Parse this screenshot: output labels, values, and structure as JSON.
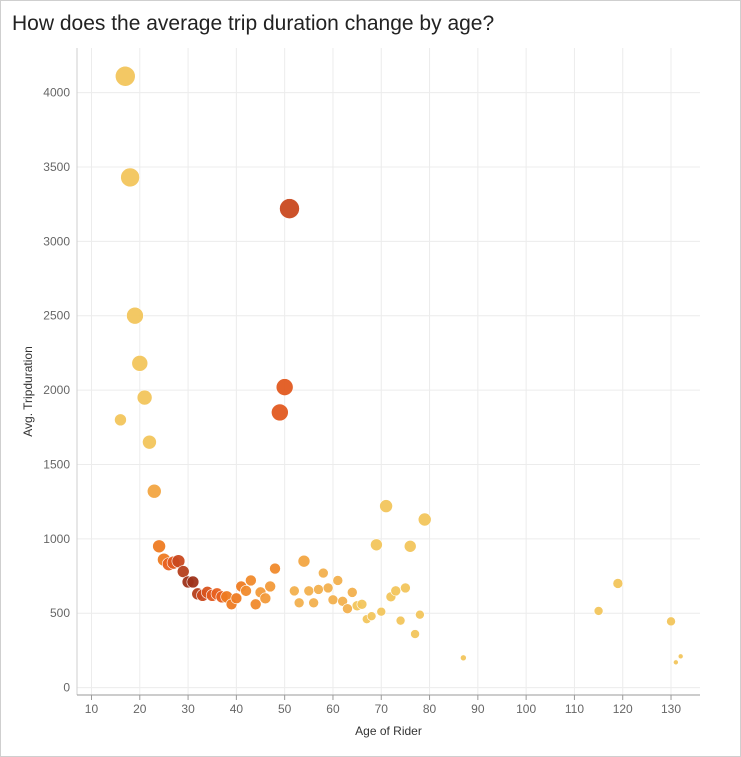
{
  "title": "How does the average trip duration change by age?",
  "chart_data": {
    "type": "scatter",
    "title": "How does the average trip duration change by age?",
    "xlabel": "Age of Rider",
    "ylabel": "Avg. Tripduration",
    "xlim": [
      7,
      136
    ],
    "ylim": [
      -50,
      4300
    ],
    "xticks": [
      10,
      20,
      30,
      40,
      50,
      60,
      70,
      80,
      90,
      100,
      110,
      120,
      130
    ],
    "yticks": [
      0,
      500,
      1000,
      1500,
      2000,
      2500,
      3000,
      3500,
      4000
    ],
    "grid": true,
    "encoding": "circle size and color vary per point (yellow = low, dark red = high)",
    "points": [
      {
        "x": 16,
        "y": 1800,
        "size": 6,
        "color": "#f2c55c"
      },
      {
        "x": 17,
        "y": 4110,
        "size": 10,
        "color": "#f2c55c"
      },
      {
        "x": 18,
        "y": 3430,
        "size": 9.5,
        "color": "#f2c55c"
      },
      {
        "x": 19,
        "y": 2500,
        "size": 8.5,
        "color": "#f2c55c"
      },
      {
        "x": 20,
        "y": 2180,
        "size": 8,
        "color": "#f2c55c"
      },
      {
        "x": 21,
        "y": 1950,
        "size": 7.5,
        "color": "#f2c55c"
      },
      {
        "x": 22,
        "y": 1650,
        "size": 7,
        "color": "#f2c55c"
      },
      {
        "x": 23,
        "y": 1320,
        "size": 7,
        "color": "#f2a542"
      },
      {
        "x": 24,
        "y": 950,
        "size": 6.5,
        "color": "#ee7b22"
      },
      {
        "x": 25,
        "y": 860,
        "size": 6.5,
        "color": "#ee7b22"
      },
      {
        "x": 26,
        "y": 830,
        "size": 6.5,
        "color": "#e86120"
      },
      {
        "x": 27,
        "y": 840,
        "size": 6.5,
        "color": "#e25a20"
      },
      {
        "x": 28,
        "y": 850,
        "size": 6.5,
        "color": "#c9491f"
      },
      {
        "x": 29,
        "y": 780,
        "size": 6,
        "color": "#b5401d"
      },
      {
        "x": 30,
        "y": 710,
        "size": 6,
        "color": "#9e331a"
      },
      {
        "x": 31,
        "y": 710,
        "size": 6,
        "color": "#9e331a"
      },
      {
        "x": 32,
        "y": 630,
        "size": 6,
        "color": "#b5401d"
      },
      {
        "x": 33,
        "y": 620,
        "size": 6,
        "color": "#c9491f"
      },
      {
        "x": 34,
        "y": 640,
        "size": 6,
        "color": "#d8541f"
      },
      {
        "x": 35,
        "y": 620,
        "size": 6,
        "color": "#e25a20"
      },
      {
        "x": 36,
        "y": 630,
        "size": 6,
        "color": "#e86120"
      },
      {
        "x": 37,
        "y": 610,
        "size": 6,
        "color": "#e86120"
      },
      {
        "x": 38,
        "y": 610,
        "size": 6,
        "color": "#ee7b22"
      },
      {
        "x": 39,
        "y": 560,
        "size": 5.5,
        "color": "#ee7b22"
      },
      {
        "x": 40,
        "y": 600,
        "size": 5.5,
        "color": "#ee7b22"
      },
      {
        "x": 41,
        "y": 680,
        "size": 5.5,
        "color": "#ee7b22"
      },
      {
        "x": 42,
        "y": 650,
        "size": 5.5,
        "color": "#f08a2c"
      },
      {
        "x": 43,
        "y": 720,
        "size": 5.5,
        "color": "#f08a2c"
      },
      {
        "x": 44,
        "y": 560,
        "size": 5.5,
        "color": "#f08a2c"
      },
      {
        "x": 45,
        "y": 640,
        "size": 5.5,
        "color": "#f29a3a"
      },
      {
        "x": 46,
        "y": 600,
        "size": 5.5,
        "color": "#f29a3a"
      },
      {
        "x": 47,
        "y": 680,
        "size": 5.5,
        "color": "#f29a3a"
      },
      {
        "x": 48,
        "y": 800,
        "size": 5.5,
        "color": "#f08a2c"
      },
      {
        "x": 49,
        "y": 1850,
        "size": 8.5,
        "color": "#e25a20"
      },
      {
        "x": 50,
        "y": 2020,
        "size": 8.5,
        "color": "#e25a20"
      },
      {
        "x": 51,
        "y": 3220,
        "size": 10,
        "color": "#c9491f"
      },
      {
        "x": 52,
        "y": 650,
        "size": 5,
        "color": "#f2b04e"
      },
      {
        "x": 53,
        "y": 570,
        "size": 5,
        "color": "#f2b04e"
      },
      {
        "x": 54,
        "y": 850,
        "size": 6,
        "color": "#f2a542"
      },
      {
        "x": 55,
        "y": 650,
        "size": 5,
        "color": "#f2b04e"
      },
      {
        "x": 56,
        "y": 570,
        "size": 5,
        "color": "#f2b04e"
      },
      {
        "x": 57,
        "y": 660,
        "size": 5,
        "color": "#f2b04e"
      },
      {
        "x": 58,
        "y": 770,
        "size": 5,
        "color": "#f2b04e"
      },
      {
        "x": 59,
        "y": 670,
        "size": 5,
        "color": "#f2b04e"
      },
      {
        "x": 60,
        "y": 590,
        "size": 5,
        "color": "#f2b04e"
      },
      {
        "x": 61,
        "y": 720,
        "size": 5,
        "color": "#f2b04e"
      },
      {
        "x": 62,
        "y": 580,
        "size": 5,
        "color": "#f2b04e"
      },
      {
        "x": 63,
        "y": 530,
        "size": 5,
        "color": "#f2b04e"
      },
      {
        "x": 64,
        "y": 640,
        "size": 5,
        "color": "#f2b04e"
      },
      {
        "x": 65,
        "y": 550,
        "size": 5,
        "color": "#f2c55c"
      },
      {
        "x": 66,
        "y": 560,
        "size": 5,
        "color": "#f2c55c"
      },
      {
        "x": 67,
        "y": 460,
        "size": 4.5,
        "color": "#f2c55c"
      },
      {
        "x": 68,
        "y": 480,
        "size": 4.5,
        "color": "#f2c55c"
      },
      {
        "x": 69,
        "y": 960,
        "size": 6,
        "color": "#f2c55c"
      },
      {
        "x": 70,
        "y": 510,
        "size": 4.5,
        "color": "#f2c55c"
      },
      {
        "x": 71,
        "y": 1220,
        "size": 6.5,
        "color": "#f2c55c"
      },
      {
        "x": 72,
        "y": 610,
        "size": 5,
        "color": "#f2c55c"
      },
      {
        "x": 73,
        "y": 650,
        "size": 5,
        "color": "#f2c55c"
      },
      {
        "x": 74,
        "y": 450,
        "size": 4.5,
        "color": "#f2c55c"
      },
      {
        "x": 75,
        "y": 670,
        "size": 5,
        "color": "#f2c55c"
      },
      {
        "x": 76,
        "y": 950,
        "size": 6,
        "color": "#f2c55c"
      },
      {
        "x": 77,
        "y": 360,
        "size": 4.5,
        "color": "#f2c55c"
      },
      {
        "x": 78,
        "y": 490,
        "size": 4.5,
        "color": "#f2c55c"
      },
      {
        "x": 79,
        "y": 1130,
        "size": 6.5,
        "color": "#f2c55c"
      },
      {
        "x": 87,
        "y": 200,
        "size": 3,
        "color": "#f2c55c"
      },
      {
        "x": 115,
        "y": 515,
        "size": 4.5,
        "color": "#f2c55c"
      },
      {
        "x": 119,
        "y": 700,
        "size": 5,
        "color": "#f2c55c"
      },
      {
        "x": 130,
        "y": 445,
        "size": 4.5,
        "color": "#f2c55c"
      },
      {
        "x": 131,
        "y": 170,
        "size": 2.5,
        "color": "#f2c55c"
      },
      {
        "x": 132,
        "y": 210,
        "size": 2.5,
        "color": "#f2c55c"
      }
    ]
  }
}
